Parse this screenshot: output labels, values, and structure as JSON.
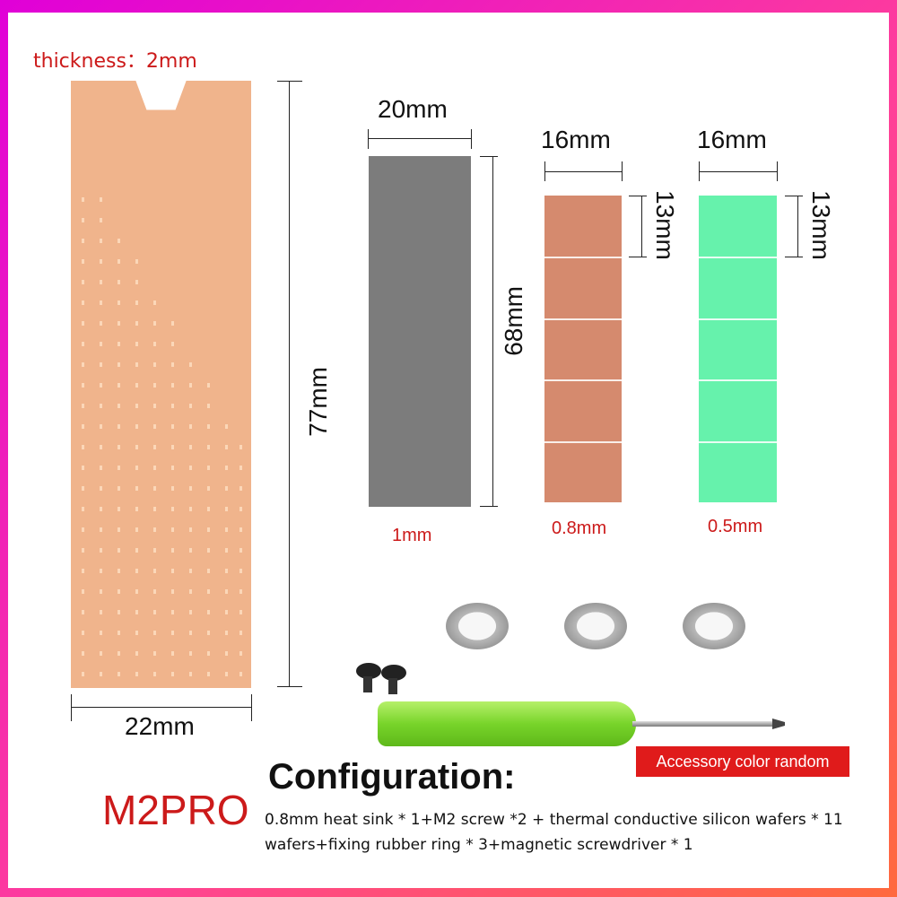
{
  "thickness_label": "thickness：2mm",
  "heatsink": {
    "width_label": "22mm",
    "height_label": "77mm",
    "color": "#f0b48c"
  },
  "pads": [
    {
      "width_label": "20mm",
      "height_label": "68mm",
      "thickness_label": "1mm",
      "color": "#7c7c7c"
    },
    {
      "width_label": "16mm",
      "height_label": "13mm",
      "thickness_label": "0.8mm",
      "color": "#d58a6e"
    },
    {
      "width_label": "16mm",
      "height_label": "13mm",
      "thickness_label": "0.5mm",
      "color": "#66f2ac"
    }
  ],
  "accessory_badge": "Accessory color random",
  "model": "M2PRO",
  "configuration": {
    "title": "Configuration:",
    "description": "0.8mm heat sink * 1+M2 screw *2 + thermal conductive silicon wafers * 11 wafers+fixing rubber ring * 3+magnetic screwdriver * 1"
  },
  "colors": {
    "accent_red": "#cc1a1a",
    "badge_red": "#e01b1b",
    "screwdriver_green": "#78d42a"
  }
}
